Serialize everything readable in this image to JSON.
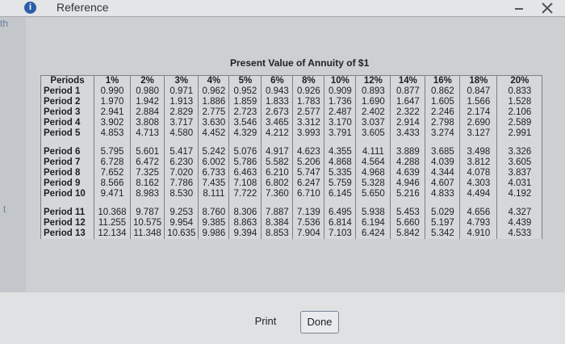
{
  "header": {
    "icon": "i",
    "title": "Reference"
  },
  "side_texts": [
    "th",
    "t"
  ],
  "table": {
    "title": "Present Value of Annuity of $1",
    "columns": [
      "Periods",
      "1%",
      "2%",
      "3%",
      "4%",
      "5%",
      "6%",
      "8%",
      "10%",
      "12%",
      "14%",
      "16%",
      "18%",
      "20%"
    ],
    "rows": [
      [
        "Period 1",
        "0.990",
        "0.980",
        "0.971",
        "0.962",
        "0.952",
        "0.943",
        "0.926",
        "0.909",
        "0.893",
        "0.877",
        "0.862",
        "0.847",
        "0.833"
      ],
      [
        "Period 2",
        "1.970",
        "1.942",
        "1.913",
        "1.886",
        "1.859",
        "1.833",
        "1.783",
        "1.736",
        "1.690",
        "1.647",
        "1.605",
        "1.566",
        "1.528"
      ],
      [
        "Period 3",
        "2.941",
        "2.884",
        "2.829",
        "2.775",
        "2.723",
        "2.673",
        "2.577",
        "2.487",
        "2.402",
        "2.322",
        "2.246",
        "2.174",
        "2.106"
      ],
      [
        "Period 4",
        "3.902",
        "3.808",
        "3.717",
        "3.630",
        "3.546",
        "3.465",
        "3.312",
        "3.170",
        "3.037",
        "2.914",
        "2.798",
        "2.690",
        "2.589"
      ],
      [
        "Period 5",
        "4.853",
        "4.713",
        "4.580",
        "4.452",
        "4.329",
        "4.212",
        "3.993",
        "3.791",
        "3.605",
        "3.433",
        "3.274",
        "3.127",
        "2.991"
      ],
      [
        "Period 6",
        "5.795",
        "5.601",
        "5.417",
        "5.242",
        "5.076",
        "4.917",
        "4.623",
        "4.355",
        "4.111",
        "3.889",
        "3.685",
        "3.498",
        "3.326"
      ],
      [
        "Period 7",
        "6.728",
        "6.472",
        "6.230",
        "6.002",
        "5.786",
        "5.582",
        "5.206",
        "4.868",
        "4.564",
        "4.288",
        "4.039",
        "3.812",
        "3.605"
      ],
      [
        "Period 8",
        "7.652",
        "7.325",
        "7.020",
        "6.733",
        "6.463",
        "6.210",
        "5.747",
        "5.335",
        "4.968",
        "4.639",
        "4.344",
        "4.078",
        "3.837"
      ],
      [
        "Period 9",
        "8.566",
        "8.162",
        "7.786",
        "7.435",
        "7.108",
        "6.802",
        "6.247",
        "5.759",
        "5.328",
        "4.946",
        "4.607",
        "4.303",
        "4.031"
      ],
      [
        "Period 10",
        "9.471",
        "8.983",
        "8.530",
        "8.111",
        "7.722",
        "7.360",
        "6.710",
        "6.145",
        "5.650",
        "5.216",
        "4.833",
        "4.494",
        "4.192"
      ],
      [
        "Period 11",
        "10.368",
        "9.787",
        "9.253",
        "8.760",
        "8.306",
        "7.887",
        "7.139",
        "6.495",
        "5.938",
        "5.453",
        "5.029",
        "4.656",
        "4.327"
      ],
      [
        "Period 12",
        "11.255",
        "10.575",
        "9.954",
        "9.385",
        "8.863",
        "8.384",
        "7.536",
        "6.814",
        "6.194",
        "5.660",
        "5.197",
        "4.793",
        "4.439"
      ],
      [
        "Period 13",
        "12.134",
        "11.348",
        "10.635",
        "9.986",
        "9.394",
        "8.853",
        "7.904",
        "7.103",
        "6.424",
        "5.842",
        "5.342",
        "4.910",
        "4.533"
      ]
    ]
  },
  "buttons": [
    "Print",
    "Done"
  ]
}
